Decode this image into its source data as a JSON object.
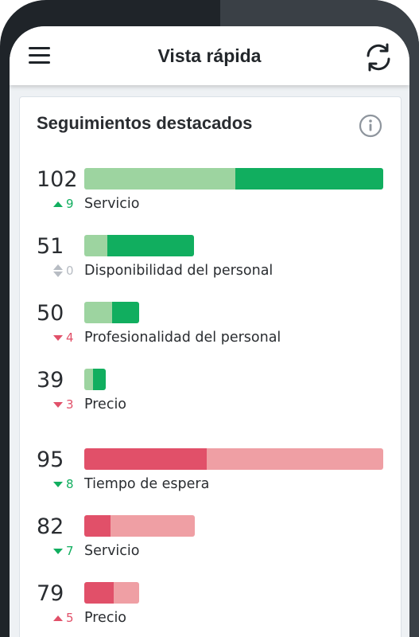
{
  "header": {
    "title": "Vista rápida"
  },
  "panel": {
    "title": "Seguimientos destacados"
  },
  "colors": {
    "positive_dark": "#11ae5f",
    "positive_light": "#9dd4a0",
    "negative_dark": "#e15069",
    "negative_light": "#ef9fa4",
    "delta_up": "#11ae5f",
    "delta_down": "#e15069",
    "delta_neutral": "#b7bcc3"
  },
  "positive": [
    {
      "value": "102",
      "label": "Servicio",
      "delta": "9",
      "direction": "up",
      "bar_fraction": 1.0,
      "prior_share": 0.506
    },
    {
      "value": "51",
      "label": "Disponibilidad del personal",
      "delta": "0",
      "direction": "neutral",
      "bar_fraction": 0.366,
      "prior_share": 0.21
    },
    {
      "value": "50",
      "label": "Profesionalidad del personal",
      "delta": "4",
      "direction": "down",
      "bar_fraction": 0.184,
      "prior_share": 0.5
    },
    {
      "value": "39",
      "label": "Precio",
      "delta": "3",
      "direction": "down",
      "bar_fraction": 0.071,
      "prior_share": 0.41
    }
  ],
  "negative": [
    {
      "value": "95",
      "label": "Tiempo de espera",
      "delta": "8",
      "direction": "down",
      "bar_fraction": 1.0,
      "prior_share": 0.41
    },
    {
      "value": "82",
      "label": "Servicio",
      "delta": "7",
      "direction": "down",
      "bar_fraction": 0.37,
      "prior_share": 0.24
    },
    {
      "value": "79",
      "label": "Precio",
      "delta": "5",
      "direction": "up",
      "bar_fraction": 0.184,
      "prior_share": 0.53
    }
  ]
}
